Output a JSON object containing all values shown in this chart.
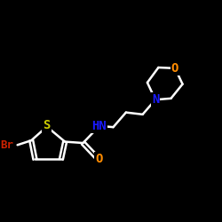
{
  "background": "#000000",
  "bond_color": "#ffffff",
  "bond_width": 1.8,
  "atom_colors": {
    "C": "#ffffff",
    "N": "#1a1aff",
    "O": "#ff8c00",
    "S": "#cccc00",
    "Br": "#cc2200",
    "H": "#ffffff"
  },
  "font_size": 10,
  "font_size_br": 9
}
